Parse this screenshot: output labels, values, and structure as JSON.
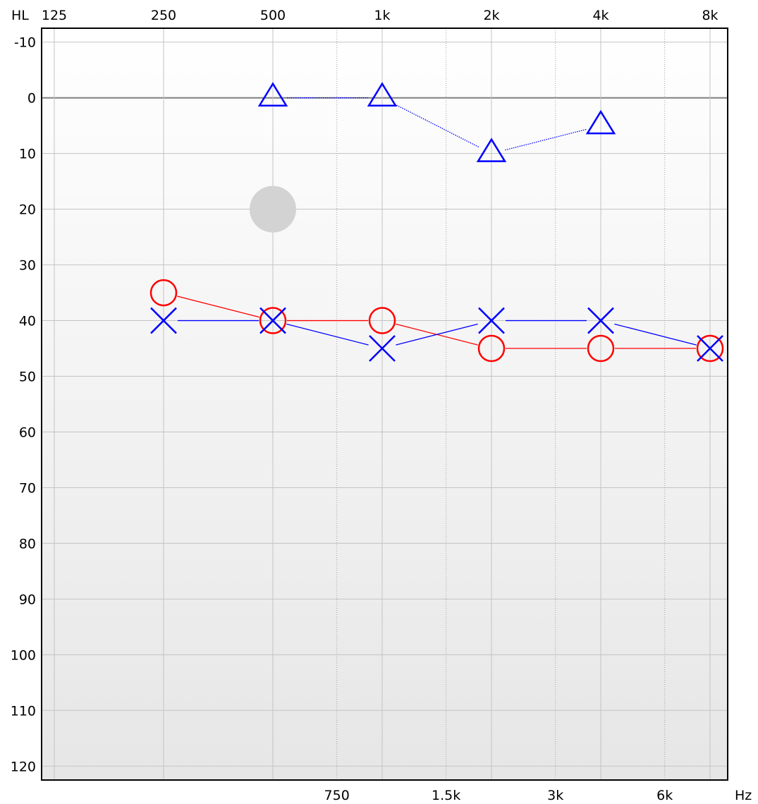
{
  "chart_data": {
    "type": "scatter",
    "title": "",
    "y_axis_label": "HL",
    "x_unit": "Hz",
    "x_scale": "log2",
    "y_inverted": true,
    "ylim": [
      -12.5,
      122.5
    ],
    "grid": true,
    "background": {
      "top": "#ffffff",
      "bottom": "#e6e6e6",
      "plot_border": "#000000"
    },
    "x_major": [
      {
        "freq": 125,
        "label": "125"
      },
      {
        "freq": 250,
        "label": "250"
      },
      {
        "freq": 500,
        "label": "500"
      },
      {
        "freq": 1000,
        "label": "1k"
      },
      {
        "freq": 2000,
        "label": "2k"
      },
      {
        "freq": 4000,
        "label": "4k"
      },
      {
        "freq": 8000,
        "label": "8k"
      }
    ],
    "x_minor": [
      {
        "freq": 750,
        "label": "750"
      },
      {
        "freq": 1500,
        "label": "1.5k"
      },
      {
        "freq": 3000,
        "label": "3k"
      },
      {
        "freq": 6000,
        "label": "6k"
      }
    ],
    "y_ticks": [
      -10,
      0,
      10,
      20,
      30,
      40,
      50,
      60,
      70,
      80,
      90,
      100,
      110,
      120
    ],
    "zero_line": 0,
    "series": [
      {
        "marker": "triangle",
        "color": "#0000ff",
        "line": "dotted",
        "points": [
          {
            "freq": 500,
            "hl": 0
          },
          {
            "freq": 1000,
            "hl": 0
          },
          {
            "freq": 2000,
            "hl": 10
          },
          {
            "freq": 4000,
            "hl": 5
          }
        ]
      },
      {
        "marker": "circle",
        "color": "#ff0000",
        "line": "solid",
        "points": [
          {
            "freq": 250,
            "hl": 35
          },
          {
            "freq": 500,
            "hl": 40
          },
          {
            "freq": 1000,
            "hl": 40
          },
          {
            "freq": 2000,
            "hl": 45
          },
          {
            "freq": 4000,
            "hl": 45
          },
          {
            "freq": 8000,
            "hl": 45
          }
        ]
      },
      {
        "marker": "cross",
        "color": "#0000ff",
        "line": "solid",
        "points": [
          {
            "freq": 250,
            "hl": 40
          },
          {
            "freq": 500,
            "hl": 40
          },
          {
            "freq": 1000,
            "hl": 45
          },
          {
            "freq": 2000,
            "hl": 40
          },
          {
            "freq": 4000,
            "hl": 40
          },
          {
            "freq": 8000,
            "hl": 45
          }
        ]
      }
    ],
    "highlight": {
      "freq": 500,
      "hl": 20,
      "color": "#d3d3d3"
    }
  }
}
